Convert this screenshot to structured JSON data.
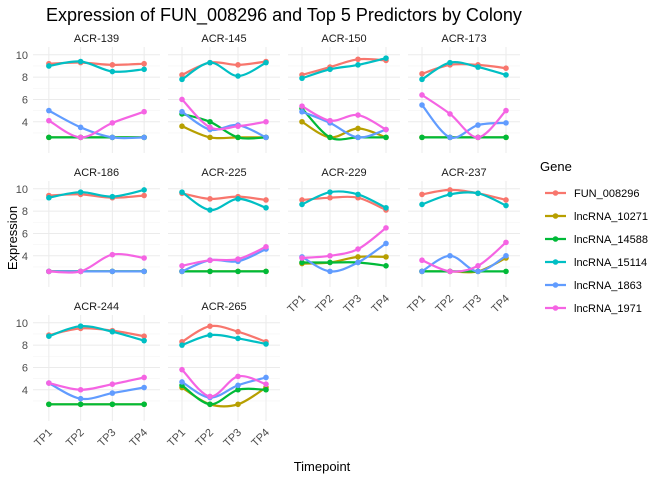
{
  "chart_data": {
    "type": "line",
    "title": "Expression of FUN_008296 and Top 5 Predictors by Colony",
    "xlabel": "Timepoint",
    "ylabel": "Expression",
    "categories": [
      "TP1",
      "TP2",
      "TP3",
      "TP4"
    ],
    "ylim": [
      1.2,
      10.7
    ],
    "yticks": [
      4,
      6,
      8,
      10
    ],
    "grid": true,
    "legend": {
      "title": "Gene",
      "position": "right",
      "entries": [
        "FUN_008296",
        "lncRNA_10271",
        "lncRNA_14588",
        "lncRNA_15114",
        "lncRNA_1863",
        "lncRNA_1971"
      ]
    },
    "colors": {
      "FUN_008296": "#F8766D",
      "lncRNA_10271": "#B79F00",
      "lncRNA_14588": "#00BA38",
      "lncRNA_15114": "#00BFC4",
      "lncRNA_1863": "#619CFF",
      "lncRNA_1971": "#F564E3"
    },
    "panels": [
      {
        "colony": "ACR-139",
        "series": {
          "FUN_008296": [
            9.2,
            9.3,
            9.1,
            9.2
          ],
          "lncRNA_10271": [
            2.6,
            2.6,
            2.6,
            2.6
          ],
          "lncRNA_14588": [
            2.6,
            2.6,
            2.6,
            2.6
          ],
          "lncRNA_15114": [
            9.0,
            9.4,
            8.5,
            8.7
          ],
          "lncRNA_1863": [
            5.0,
            3.5,
            2.6,
            2.6
          ],
          "lncRNA_1971": [
            4.1,
            2.6,
            3.9,
            4.9
          ]
        }
      },
      {
        "colony": "ACR-145",
        "series": {
          "FUN_008296": [
            8.2,
            9.3,
            9.1,
            9.4
          ],
          "lncRNA_10271": [
            3.6,
            2.6,
            2.6,
            2.6
          ],
          "lncRNA_14588": [
            4.7,
            4.0,
            2.6,
            2.6
          ],
          "lncRNA_15114": [
            7.8,
            9.3,
            8.1,
            9.3
          ],
          "lncRNA_1863": [
            4.9,
            3.3,
            3.7,
            2.6
          ],
          "lncRNA_1971": [
            6.0,
            3.5,
            3.6,
            4.0
          ]
        }
      },
      {
        "colony": "ACR-150",
        "series": {
          "FUN_008296": [
            8.2,
            8.9,
            9.6,
            9.5
          ],
          "lncRNA_10271": [
            4.0,
            2.6,
            3.4,
            2.6
          ],
          "lncRNA_14588": [
            5.2,
            2.6,
            2.6,
            2.6
          ],
          "lncRNA_15114": [
            7.9,
            8.7,
            9.1,
            9.7
          ],
          "lncRNA_1863": [
            4.9,
            3.9,
            2.6,
            3.3
          ],
          "lncRNA_1971": [
            5.4,
            4.1,
            4.6,
            3.3
          ]
        }
      },
      {
        "colony": "ACR-173",
        "series": {
          "FUN_008296": [
            8.3,
            9.1,
            9.1,
            8.8
          ],
          "lncRNA_10271": [
            2.6,
            2.6,
            2.6,
            2.6
          ],
          "lncRNA_14588": [
            2.6,
            2.6,
            2.6,
            2.6
          ],
          "lncRNA_15114": [
            7.8,
            9.3,
            8.9,
            8.2
          ],
          "lncRNA_1863": [
            5.5,
            2.6,
            3.7,
            3.9
          ],
          "lncRNA_1971": [
            6.4,
            4.7,
            2.6,
            5.0
          ]
        }
      },
      {
        "colony": "ACR-186",
        "series": {
          "FUN_008296": [
            9.4,
            9.5,
            9.2,
            9.4
          ],
          "lncRNA_10271": [
            2.6,
            2.6,
            2.6,
            2.6
          ],
          "lncRNA_14588": [
            2.6,
            2.6,
            2.6,
            2.6
          ],
          "lncRNA_15114": [
            9.2,
            9.7,
            9.3,
            9.9
          ],
          "lncRNA_1863": [
            2.6,
            2.6,
            2.6,
            2.6
          ],
          "lncRNA_1971": [
            2.6,
            2.6,
            4.1,
            3.8
          ]
        }
      },
      {
        "colony": "ACR-225",
        "series": {
          "FUN_008296": [
            9.6,
            9.1,
            9.3,
            9.0
          ],
          "lncRNA_10271": [
            2.6,
            2.6,
            2.6,
            2.6
          ],
          "lncRNA_14588": [
            2.6,
            2.6,
            2.6,
            2.6
          ],
          "lncRNA_15114": [
            9.7,
            8.1,
            9.1,
            8.3
          ],
          "lncRNA_1863": [
            2.6,
            3.6,
            3.5,
            4.6
          ],
          "lncRNA_1971": [
            3.1,
            3.6,
            3.7,
            4.8
          ]
        }
      },
      {
        "colony": "ACR-229",
        "series": {
          "FUN_008296": [
            9.0,
            9.2,
            9.2,
            8.1
          ],
          "lncRNA_10271": [
            3.3,
            3.4,
            3.9,
            3.9
          ],
          "lncRNA_14588": [
            3.4,
            3.4,
            3.4,
            3.1
          ],
          "lncRNA_15114": [
            8.6,
            9.7,
            9.5,
            8.3
          ],
          "lncRNA_1863": [
            3.9,
            2.6,
            3.4,
            5.1
          ],
          "lncRNA_1971": [
            3.8,
            4.0,
            4.6,
            6.5
          ]
        }
      },
      {
        "colony": "ACR-237",
        "series": {
          "FUN_008296": [
            9.5,
            9.9,
            9.6,
            9.0
          ],
          "lncRNA_10271": [
            2.6,
            2.6,
            2.6,
            3.8
          ],
          "lncRNA_14588": [
            2.6,
            2.6,
            2.6,
            2.6
          ],
          "lncRNA_15114": [
            8.6,
            9.5,
            9.6,
            8.5
          ],
          "lncRNA_1863": [
            2.6,
            4.0,
            2.6,
            4.0
          ],
          "lncRNA_1971": [
            3.6,
            2.6,
            3.1,
            5.2
          ]
        }
      },
      {
        "colony": "ACR-244",
        "series": {
          "FUN_008296": [
            8.9,
            9.5,
            9.3,
            8.8
          ],
          "lncRNA_10271": [
            2.7,
            2.7,
            2.7,
            2.7
          ],
          "lncRNA_14588": [
            2.7,
            2.7,
            2.7,
            2.7
          ],
          "lncRNA_15114": [
            8.8,
            9.7,
            9.2,
            8.4
          ],
          "lncRNA_1863": [
            4.6,
            3.2,
            3.7,
            4.2
          ],
          "lncRNA_1971": [
            4.6,
            4.0,
            4.5,
            5.1
          ]
        }
      },
      {
        "colony": "ACR-265",
        "series": {
          "FUN_008296": [
            8.3,
            9.7,
            9.2,
            8.3
          ],
          "lncRNA_10271": [
            4.2,
            2.7,
            2.7,
            4.2
          ],
          "lncRNA_14588": [
            4.4,
            2.7,
            4.0,
            4.0
          ],
          "lncRNA_15114": [
            8.0,
            8.9,
            8.6,
            8.1
          ],
          "lncRNA_1863": [
            4.7,
            3.3,
            4.4,
            5.1
          ],
          "lncRNA_1971": [
            5.8,
            3.4,
            5.2,
            4.5
          ]
        }
      }
    ]
  }
}
